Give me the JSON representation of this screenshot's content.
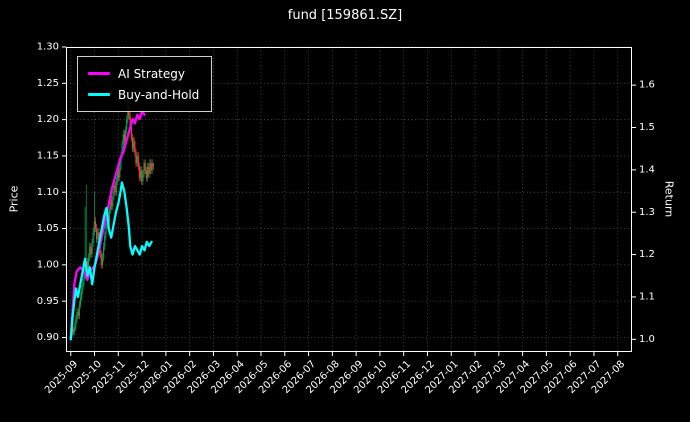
{
  "title": "fund [159861.SZ]",
  "axes_titles": {
    "left": "Price",
    "right": "Return"
  },
  "chart_data": {
    "type": "line",
    "subtype": "candlestick-with-line-overlay",
    "title": "fund [159861.SZ]",
    "xlabel": "",
    "ylabel_left": "Price",
    "ylabel_right": "Return",
    "grid": "dotted",
    "legend_position": "upper-left",
    "axes": {
      "x_range_months": [
        -0.2,
        23.6
      ],
      "price_range": [
        0.88,
        1.3
      ],
      "return_range": [
        0.97,
        1.69
      ]
    },
    "x_tick_labels": [
      "2025-09",
      "2025-10",
      "2025-11",
      "2025-12",
      "2026-01",
      "2026-02",
      "2026-03",
      "2026-04",
      "2026-05",
      "2026-06",
      "2026-07",
      "2026-08",
      "2026-09",
      "2026-10",
      "2026-11",
      "2026-12",
      "2027-01",
      "2027-02",
      "2027-03",
      "2027-04",
      "2027-05",
      "2027-06",
      "2027-07",
      "2027-08"
    ],
    "price_ticks": [
      0.9,
      0.95,
      1.0,
      1.05,
      1.1,
      1.15,
      1.2,
      1.25,
      1.3
    ],
    "price_tick_labels": [
      "0.90",
      "0.95",
      "1.00",
      "1.05",
      "1.10",
      "1.15",
      "1.20",
      "1.25",
      "1.30"
    ],
    "return_ticks": [
      1.0,
      1.1,
      1.2,
      1.3,
      1.4,
      1.5,
      1.6
    ],
    "return_tick_labels": [
      "1.0",
      "1.1",
      "1.2",
      "1.3",
      "1.4",
      "1.5",
      "1.6"
    ],
    "style": {
      "background": "#000000",
      "frame": "#ffffff",
      "tick_text": "#ffffff",
      "grid": "#4d4d4d",
      "up": "#00a650",
      "down": "#ff3b30"
    },
    "candles": {
      "axis": "price",
      "month_start": 0.02,
      "month_step": 0.0486,
      "o": [
        0.9,
        0.905,
        0.912,
        0.908,
        0.915,
        0.925,
        0.935,
        0.93,
        0.945,
        0.955,
        0.965,
        0.975,
        0.985,
        0.995,
        1.005,
        0.995,
        1.01,
        1.025,
        1.015,
        1.03,
        1.045,
        1.06,
        1.05,
        1.035,
        1.045,
        1.03,
        1.015,
        1.0,
        1.01,
        1.025,
        1.04,
        1.055,
        1.07,
        1.06,
        1.075,
        1.09,
        1.08,
        1.095,
        1.11,
        1.1,
        1.115,
        1.13,
        1.12,
        1.135,
        1.15,
        1.165,
        1.18,
        1.17,
        1.185,
        1.2,
        1.215,
        1.205,
        1.19,
        1.175,
        1.16,
        1.17,
        1.155,
        1.14,
        1.15,
        1.135,
        1.12,
        1.13,
        1.115,
        1.125,
        1.14,
        1.13,
        1.12,
        1.135,
        1.125,
        1.14,
        1.13,
        1.14
      ],
      "h": [
        0.91,
        0.918,
        0.915,
        0.921,
        0.931,
        0.941,
        0.94,
        0.951,
        0.961,
        0.971,
        0.981,
        0.991,
        1.08,
        1.11,
        1.01,
        1.016,
        1.031,
        1.03,
        1.036,
        1.051,
        1.1,
        1.066,
        1.056,
        1.051,
        1.05,
        1.036,
        1.02,
        1.016,
        1.031,
        1.046,
        1.061,
        1.076,
        1.075,
        1.081,
        1.096,
        1.095,
        1.101,
        1.116,
        1.115,
        1.121,
        1.136,
        1.135,
        1.141,
        1.156,
        1.171,
        1.186,
        1.186,
        1.191,
        1.206,
        1.23,
        1.221,
        1.21,
        1.195,
        1.181,
        1.176,
        1.175,
        1.16,
        1.156,
        1.155,
        1.141,
        1.136,
        1.135,
        1.131,
        1.146,
        1.145,
        1.135,
        1.141,
        1.14,
        1.146,
        1.145,
        1.146,
        1.141
      ],
      "l": [
        0.896,
        0.901,
        0.903,
        0.903,
        0.91,
        0.92,
        0.925,
        0.925,
        0.94,
        0.95,
        0.96,
        0.97,
        0.98,
        0.99,
        0.99,
        0.99,
        1.005,
        1.01,
        1.01,
        1.025,
        1.04,
        1.045,
        1.03,
        1.03,
        1.025,
        1.01,
        0.995,
        0.995,
        1.005,
        1.02,
        1.035,
        1.05,
        1.055,
        1.055,
        1.07,
        1.075,
        1.075,
        1.09,
        1.095,
        1.095,
        1.11,
        1.115,
        1.115,
        1.13,
        1.145,
        1.16,
        1.165,
        1.165,
        1.18,
        1.195,
        1.2,
        1.185,
        1.17,
        1.155,
        1.155,
        1.15,
        1.135,
        1.135,
        1.13,
        1.115,
        1.115,
        1.11,
        1.11,
        1.12,
        1.125,
        1.115,
        1.115,
        1.12,
        1.12,
        1.125,
        1.125,
        1.13
      ],
      "c": [
        0.905,
        0.912,
        0.908,
        0.915,
        0.925,
        0.935,
        0.93,
        0.945,
        0.955,
        0.965,
        0.975,
        0.985,
        0.995,
        1.005,
        0.995,
        1.01,
        1.025,
        1.015,
        1.03,
        1.045,
        1.06,
        1.05,
        1.035,
        1.045,
        1.03,
        1.015,
        1.0,
        1.01,
        1.025,
        1.04,
        1.055,
        1.07,
        1.06,
        1.075,
        1.09,
        1.08,
        1.095,
        1.11,
        1.1,
        1.115,
        1.13,
        1.12,
        1.135,
        1.15,
        1.165,
        1.18,
        1.17,
        1.185,
        1.2,
        1.215,
        1.205,
        1.19,
        1.175,
        1.16,
        1.17,
        1.155,
        1.14,
        1.15,
        1.135,
        1.12,
        1.13,
        1.115,
        1.125,
        1.14,
        1.13,
        1.12,
        1.135,
        1.125,
        1.14,
        1.13,
        1.14,
        1.135
      ]
    },
    "series": [
      {
        "name": "AI Strategy",
        "axis": "return",
        "color": "#ff00ff",
        "x": [
          0,
          0.08,
          0.15,
          0.25,
          0.4,
          0.55,
          0.7,
          0.8,
          0.95,
          1.05,
          1.15,
          1.3,
          1.45,
          1.6,
          1.75,
          1.9,
          2.0,
          2.1,
          2.2,
          2.3,
          2.4,
          2.5,
          2.6,
          2.7,
          2.8,
          2.9,
          3.0,
          3.1
        ],
        "y": [
          1.0,
          1.07,
          1.13,
          1.16,
          1.17,
          1.16,
          1.14,
          1.16,
          1.17,
          1.18,
          1.2,
          1.24,
          1.28,
          1.32,
          1.36,
          1.39,
          1.41,
          1.43,
          1.44,
          1.46,
          1.48,
          1.5,
          1.52,
          1.51,
          1.53,
          1.52,
          1.54,
          1.53
        ]
      },
      {
        "name": "Buy-and-Hold",
        "axis": "return",
        "color": "#00ffff",
        "x": [
          0,
          0.07,
          0.15,
          0.22,
          0.3,
          0.4,
          0.5,
          0.6,
          0.65,
          0.7,
          0.8,
          0.85,
          0.9,
          1.0,
          1.1,
          1.2,
          1.3,
          1.4,
          1.5,
          1.55,
          1.6,
          1.7,
          1.8,
          1.9,
          2.0,
          2.1,
          2.15,
          2.25,
          2.35,
          2.45,
          2.5,
          2.6,
          2.7,
          2.8,
          2.9,
          3.0,
          3.1,
          3.2,
          3.3,
          3.4
        ],
        "y": [
          1.0,
          1.05,
          1.09,
          1.12,
          1.1,
          1.13,
          1.16,
          1.19,
          1.17,
          1.15,
          1.17,
          1.15,
          1.13,
          1.17,
          1.2,
          1.23,
          1.26,
          1.29,
          1.31,
          1.29,
          1.26,
          1.24,
          1.27,
          1.3,
          1.32,
          1.35,
          1.37,
          1.35,
          1.31,
          1.26,
          1.22,
          1.2,
          1.22,
          1.21,
          1.2,
          1.22,
          1.21,
          1.23,
          1.22,
          1.23
        ]
      }
    ]
  }
}
